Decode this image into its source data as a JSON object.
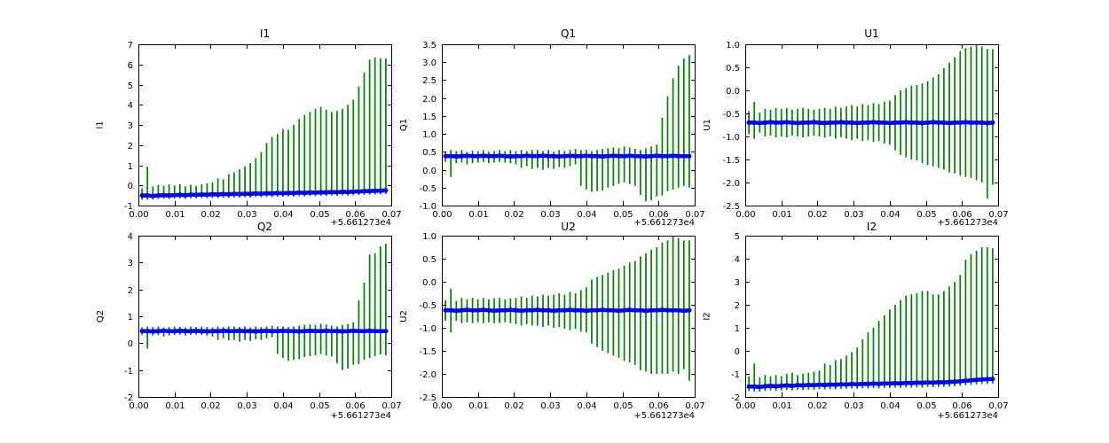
{
  "figure": {
    "background": "#ffffff",
    "axis_color": "#000000",
    "errorbar_color": "#008000",
    "marker_color": "#0000ee",
    "x_offset_label": "+5.661273e4",
    "xtick_labels": [
      "0.00",
      "0.01",
      "0.02",
      "0.03",
      "0.04",
      "0.05",
      "0.06",
      "0.07"
    ]
  },
  "chart_data": {
    "type": "errorbar",
    "title": "",
    "xlabel": "",
    "xlim": [
      0.0,
      0.07
    ],
    "x_axis_offset": "+5.661273e4",
    "grid": false,
    "legend": "none",
    "x": [
      0.001,
      0.0025,
      0.004,
      0.0055,
      0.007,
      0.0085,
      0.01,
      0.0115,
      0.013,
      0.0145,
      0.016,
      0.0175,
      0.019,
      0.0205,
      0.022,
      0.0235,
      0.025,
      0.0265,
      0.028,
      0.0295,
      0.031,
      0.0325,
      0.034,
      0.0355,
      0.037,
      0.0385,
      0.04,
      0.0415,
      0.043,
      0.0445,
      0.046,
      0.0475,
      0.049,
      0.0505,
      0.052,
      0.0535,
      0.055,
      0.0565,
      0.058,
      0.0595,
      0.061,
      0.0625,
      0.064,
      0.0655,
      0.067,
      0.0685
    ],
    "charts": [
      {
        "title": "I1",
        "ylabel": "I1",
        "ylim": [
          -1,
          7
        ],
        "ytick_labels": [
          "-1",
          "0",
          "1",
          "2",
          "3",
          "4",
          "5",
          "6",
          "7"
        ],
        "center": [
          -0.5,
          -0.5,
          -0.52,
          -0.5,
          -0.48,
          -0.5,
          -0.48,
          -0.47,
          -0.49,
          -0.46,
          -0.47,
          -0.45,
          -0.46,
          -0.44,
          -0.45,
          -0.43,
          -0.44,
          -0.42,
          -0.43,
          -0.41,
          -0.42,
          -0.4,
          -0.41,
          -0.39,
          -0.4,
          -0.38,
          -0.39,
          -0.37,
          -0.38,
          -0.36,
          -0.37,
          -0.35,
          -0.36,
          -0.34,
          -0.35,
          -0.33,
          -0.34,
          -0.32,
          -0.33,
          -0.31,
          -0.3,
          -0.29,
          -0.28,
          -0.27,
          -0.26,
          -0.25
        ],
        "upper": [
          -0.15,
          0.92,
          -0.05,
          0.02,
          -0.02,
          0.05,
          0.0,
          0.06,
          -0.04,
          0.03,
          -0.02,
          0.05,
          0.1,
          0.16,
          0.35,
          0.3,
          0.55,
          0.65,
          0.8,
          0.95,
          1.1,
          1.35,
          1.65,
          2.1,
          2.4,
          2.55,
          2.8,
          2.75,
          3.0,
          3.3,
          3.5,
          3.65,
          3.8,
          3.9,
          3.75,
          3.65,
          3.7,
          3.8,
          4.0,
          4.25,
          4.9,
          5.6,
          6.25,
          6.35,
          6.3,
          6.3
        ],
        "lower": [
          -0.7,
          -0.72,
          -0.7,
          -0.68,
          -0.66,
          -0.68,
          -0.66,
          -0.65,
          -0.67,
          -0.64,
          -0.65,
          -0.63,
          -0.64,
          -0.62,
          -0.63,
          -0.61,
          -0.62,
          -0.6,
          -0.61,
          -0.59,
          -0.6,
          -0.58,
          -0.59,
          -0.57,
          -0.58,
          -0.56,
          -0.57,
          -0.55,
          -0.56,
          -0.54,
          -0.55,
          -0.53,
          -0.54,
          -0.52,
          -0.53,
          -0.51,
          -0.52,
          -0.5,
          -0.51,
          -0.49,
          -0.48,
          -0.47,
          -0.46,
          -0.45,
          -0.44,
          -0.43
        ]
      },
      {
        "title": "Q1",
        "ylabel": "Q1",
        "ylim": [
          -1,
          3.5
        ],
        "ytick_labels": [
          "-1.0",
          "-0.5",
          "0.0",
          "0.5",
          "1.0",
          "1.5",
          "2.0",
          "2.5",
          "3.0",
          "3.5"
        ],
        "center": [
          0.38,
          0.38,
          0.37,
          0.38,
          0.39,
          0.38,
          0.38,
          0.39,
          0.38,
          0.38,
          0.39,
          0.38,
          0.37,
          0.38,
          0.38,
          0.39,
          0.38,
          0.38,
          0.39,
          0.38,
          0.38,
          0.37,
          0.38,
          0.39,
          0.38,
          0.38,
          0.39,
          0.38,
          0.38,
          0.37,
          0.38,
          0.39,
          0.38,
          0.38,
          0.39,
          0.38,
          0.38,
          0.37,
          0.38,
          0.39,
          0.38,
          0.38,
          0.39,
          0.38,
          0.38,
          0.38
        ],
        "upper": [
          0.5,
          0.55,
          0.52,
          0.55,
          0.5,
          0.53,
          0.52,
          0.55,
          0.5,
          0.52,
          0.55,
          0.52,
          0.55,
          0.52,
          0.55,
          0.52,
          0.55,
          0.55,
          0.52,
          0.55,
          0.5,
          0.55,
          0.52,
          0.55,
          0.58,
          0.55,
          0.55,
          0.52,
          0.55,
          0.58,
          0.6,
          0.62,
          0.6,
          0.65,
          0.62,
          0.58,
          0.55,
          0.6,
          0.65,
          0.7,
          1.45,
          2.05,
          2.55,
          2.9,
          3.1,
          3.2
        ],
        "lower": [
          0.22,
          -0.2,
          0.18,
          0.2,
          0.15,
          0.18,
          0.2,
          0.22,
          0.18,
          0.2,
          0.22,
          0.2,
          0.18,
          0.15,
          0.05,
          0.1,
          0.02,
          0.05,
          0.0,
          0.05,
          0.02,
          0.08,
          0.05,
          0.1,
          0.15,
          -0.45,
          -0.55,
          -0.62,
          -0.6,
          -0.58,
          -0.5,
          -0.45,
          -0.4,
          -0.35,
          -0.4,
          -0.45,
          -0.7,
          -0.88,
          -0.85,
          -0.75,
          -0.72,
          -0.6,
          -0.55,
          -0.5,
          -0.45,
          -0.5
        ]
      },
      {
        "title": "U1",
        "ylabel": "U1",
        "ylim": [
          -2.5,
          1
        ],
        "ytick_labels": [
          "-2.5",
          "-2.0",
          "-1.5",
          "-1.0",
          "-0.5",
          "0.0",
          "0.5",
          "1.0"
        ],
        "center": [
          -0.7,
          -0.7,
          -0.71,
          -0.7,
          -0.69,
          -0.7,
          -0.7,
          -0.69,
          -0.7,
          -0.71,
          -0.7,
          -0.7,
          -0.69,
          -0.7,
          -0.71,
          -0.7,
          -0.7,
          -0.69,
          -0.7,
          -0.7,
          -0.71,
          -0.7,
          -0.7,
          -0.69,
          -0.7,
          -0.7,
          -0.71,
          -0.7,
          -0.7,
          -0.69,
          -0.7,
          -0.7,
          -0.71,
          -0.7,
          -0.69,
          -0.7,
          -0.7,
          -0.71,
          -0.7,
          -0.7,
          -0.69,
          -0.7,
          -0.7,
          -0.7,
          -0.71,
          -0.7
        ],
        "upper": [
          -0.45,
          -0.25,
          -0.48,
          -0.4,
          -0.42,
          -0.38,
          -0.4,
          -0.38,
          -0.42,
          -0.4,
          -0.38,
          -0.4,
          -0.42,
          -0.4,
          -0.38,
          -0.4,
          -0.35,
          -0.38,
          -0.35,
          -0.32,
          -0.35,
          -0.3,
          -0.32,
          -0.28,
          -0.3,
          -0.25,
          -0.22,
          -0.1,
          0.0,
          0.05,
          0.1,
          0.12,
          0.15,
          0.2,
          0.28,
          0.35,
          0.48,
          0.6,
          0.72,
          0.85,
          0.92,
          0.95,
          1.0,
          0.95,
          0.9,
          0.9
        ],
        "lower": [
          -0.95,
          -1.05,
          -0.92,
          -1.0,
          -0.98,
          -1.02,
          -1.0,
          -1.02,
          -0.98,
          -1.0,
          -1.02,
          -1.0,
          -0.98,
          -1.0,
          -1.02,
          -1.0,
          -1.05,
          -1.02,
          -1.05,
          -1.08,
          -1.05,
          -1.1,
          -1.08,
          -1.12,
          -1.1,
          -1.15,
          -1.18,
          -1.3,
          -1.4,
          -1.45,
          -1.5,
          -1.52,
          -1.58,
          -1.62,
          -1.65,
          -1.68,
          -1.72,
          -1.78,
          -1.8,
          -1.85,
          -1.88,
          -1.9,
          -1.95,
          -2.0,
          -2.35,
          -2.05
        ]
      },
      {
        "title": "Q2",
        "ylabel": "Q2",
        "ylim": [
          -2,
          4
        ],
        "ytick_labels": [
          "-2",
          "-1",
          "0",
          "1",
          "2",
          "3",
          "4"
        ],
        "center": [
          0.45,
          0.45,
          0.44,
          0.45,
          0.46,
          0.45,
          0.45,
          0.46,
          0.45,
          0.45,
          0.46,
          0.45,
          0.44,
          0.45,
          0.45,
          0.46,
          0.45,
          0.45,
          0.46,
          0.45,
          0.45,
          0.44,
          0.45,
          0.46,
          0.45,
          0.45,
          0.46,
          0.45,
          0.45,
          0.44,
          0.45,
          0.46,
          0.45,
          0.45,
          0.46,
          0.45,
          0.45,
          0.44,
          0.45,
          0.46,
          0.45,
          0.45,
          0.46,
          0.45,
          0.45,
          0.45
        ],
        "upper": [
          0.58,
          0.62,
          0.6,
          0.62,
          0.58,
          0.6,
          0.62,
          0.6,
          0.58,
          0.62,
          0.6,
          0.62,
          0.6,
          0.58,
          0.62,
          0.6,
          0.62,
          0.62,
          0.6,
          0.62,
          0.58,
          0.62,
          0.6,
          0.62,
          0.65,
          0.62,
          0.62,
          0.6,
          0.62,
          0.65,
          0.68,
          0.7,
          0.68,
          0.72,
          0.7,
          0.65,
          0.62,
          0.68,
          0.72,
          0.78,
          1.6,
          2.25,
          3.3,
          3.35,
          3.6,
          3.7
        ],
        "lower": [
          0.3,
          -0.2,
          0.28,
          0.3,
          0.25,
          0.28,
          0.3,
          0.32,
          0.28,
          0.3,
          0.32,
          0.3,
          0.28,
          0.25,
          0.12,
          0.18,
          0.1,
          0.12,
          0.05,
          0.12,
          0.08,
          0.15,
          0.12,
          0.18,
          0.22,
          -0.4,
          -0.55,
          -0.65,
          -0.62,
          -0.6,
          -0.52,
          -0.48,
          -0.45,
          -0.4,
          -0.45,
          -0.5,
          -0.75,
          -1.0,
          -0.95,
          -0.8,
          -0.78,
          -0.62,
          -0.55,
          -0.48,
          -0.42,
          -0.45
        ]
      },
      {
        "title": "U2",
        "ylabel": "U2",
        "ylim": [
          -2.5,
          1
        ],
        "ytick_labels": [
          "-2.5",
          "-2.0",
          "-1.5",
          "-1.0",
          "-0.5",
          "0.0",
          "0.5",
          "1.0"
        ],
        "center": [
          -0.62,
          -0.62,
          -0.63,
          -0.62,
          -0.61,
          -0.62,
          -0.62,
          -0.61,
          -0.62,
          -0.63,
          -0.62,
          -0.62,
          -0.61,
          -0.62,
          -0.63,
          -0.62,
          -0.62,
          -0.61,
          -0.62,
          -0.62,
          -0.63,
          -0.62,
          -0.62,
          -0.61,
          -0.62,
          -0.62,
          -0.63,
          -0.62,
          -0.62,
          -0.61,
          -0.62,
          -0.62,
          -0.63,
          -0.62,
          -0.61,
          -0.62,
          -0.62,
          -0.63,
          -0.62,
          -0.62,
          -0.61,
          -0.62,
          -0.62,
          -0.62,
          -0.63,
          -0.62
        ],
        "upper": [
          -0.4,
          -0.15,
          -0.42,
          -0.35,
          -0.38,
          -0.35,
          -0.38,
          -0.35,
          -0.38,
          -0.36,
          -0.35,
          -0.38,
          -0.36,
          -0.35,
          -0.32,
          -0.35,
          -0.3,
          -0.32,
          -0.28,
          -0.3,
          -0.28,
          -0.25,
          -0.28,
          -0.22,
          -0.25,
          -0.18,
          -0.12,
          0.05,
          0.1,
          0.15,
          0.2,
          0.25,
          0.28,
          0.35,
          0.42,
          0.45,
          0.55,
          0.62,
          0.7,
          0.75,
          0.85,
          0.9,
          1.0,
          0.95,
          0.9,
          0.9
        ],
        "lower": [
          -0.85,
          -1.1,
          -0.85,
          -0.9,
          -0.88,
          -0.9,
          -0.88,
          -0.9,
          -0.88,
          -0.9,
          -0.9,
          -0.88,
          -0.9,
          -0.92,
          -0.95,
          -0.92,
          -0.95,
          -0.95,
          -0.98,
          -0.95,
          -1.0,
          -0.98,
          -1.02,
          -1.05,
          -1.02,
          -1.08,
          -1.1,
          -1.35,
          -1.42,
          -1.5,
          -1.55,
          -1.6,
          -1.65,
          -1.72,
          -1.75,
          -1.8,
          -1.92,
          -1.95,
          -2.0,
          -2.0,
          -2.0,
          -2.0,
          -1.95,
          -2.0,
          -1.9,
          -2.15
        ]
      },
      {
        "title": "I2",
        "ylabel": "I2",
        "ylim": [
          -2,
          5
        ],
        "ytick_labels": [
          "-2",
          "-1",
          "0",
          "1",
          "2",
          "3",
          "4",
          "5"
        ],
        "center": [
          -1.55,
          -1.55,
          -1.57,
          -1.54,
          -1.52,
          -1.54,
          -1.52,
          -1.5,
          -1.52,
          -1.49,
          -1.5,
          -1.48,
          -1.49,
          -1.47,
          -1.48,
          -1.46,
          -1.47,
          -1.45,
          -1.46,
          -1.44,
          -1.45,
          -1.43,
          -1.44,
          -1.42,
          -1.43,
          -1.41,
          -1.42,
          -1.4,
          -1.41,
          -1.39,
          -1.4,
          -1.38,
          -1.39,
          -1.37,
          -1.38,
          -1.36,
          -1.37,
          -1.35,
          -1.34,
          -1.32,
          -1.3,
          -1.28,
          -1.26,
          -1.24,
          -1.23,
          -1.22
        ],
        "upper": [
          -1.1,
          -0.55,
          -1.15,
          -1.05,
          -1.1,
          -1.05,
          -1.1,
          -1.0,
          -0.95,
          -1.05,
          -1.0,
          -0.95,
          -0.9,
          -0.85,
          -0.55,
          -0.6,
          -0.4,
          -0.35,
          -0.2,
          -0.05,
          0.15,
          0.5,
          0.8,
          1.0,
          1.3,
          1.55,
          1.8,
          2.0,
          2.2,
          2.4,
          2.45,
          2.5,
          2.6,
          2.6,
          2.45,
          2.45,
          2.6,
          2.8,
          3.0,
          3.3,
          3.95,
          4.2,
          4.35,
          4.5,
          4.5,
          4.45
        ],
        "lower": [
          -1.75,
          -1.77,
          -1.77,
          -1.74,
          -1.72,
          -1.74,
          -1.72,
          -1.7,
          -1.72,
          -1.69,
          -1.7,
          -1.68,
          -1.69,
          -1.67,
          -1.68,
          -1.66,
          -1.67,
          -1.65,
          -1.66,
          -1.64,
          -1.65,
          -1.63,
          -1.64,
          -1.62,
          -1.63,
          -1.61,
          -1.62,
          -1.6,
          -1.61,
          -1.59,
          -1.6,
          -1.58,
          -1.59,
          -1.57,
          -1.58,
          -1.56,
          -1.57,
          -1.55,
          -1.54,
          -1.52,
          -1.5,
          -1.48,
          -1.46,
          -1.44,
          -1.43,
          -1.42
        ]
      }
    ]
  }
}
